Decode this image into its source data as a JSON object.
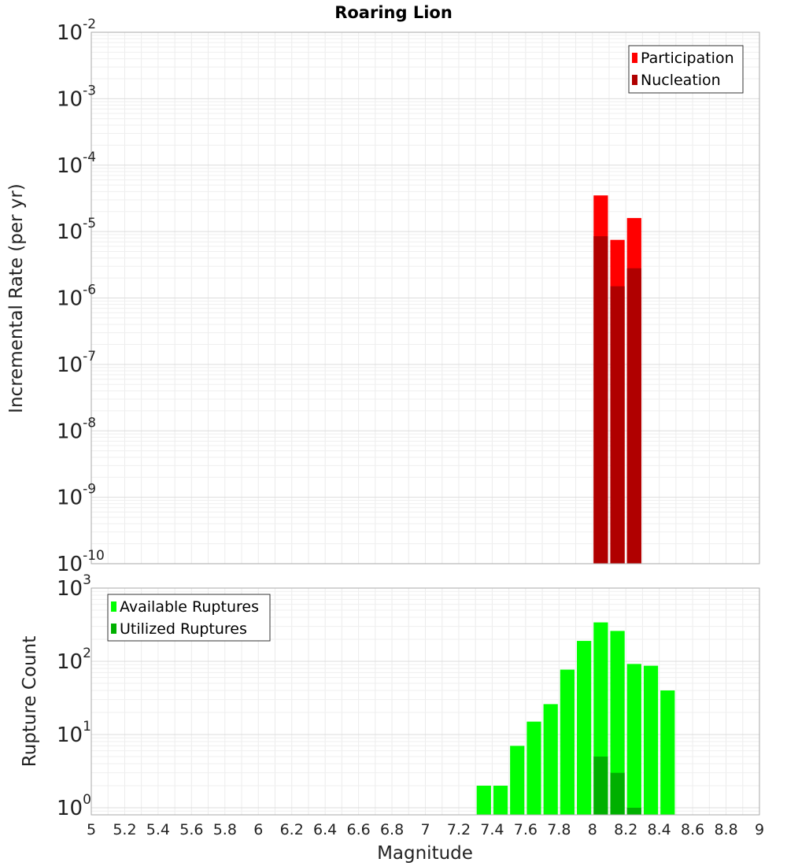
{
  "chart_data": {
    "type": "bar",
    "title": "Roaring Lion",
    "xlabel": "Magnitude",
    "xlim": [
      5,
      9
    ],
    "x_ticks": [
      "5",
      "5.2",
      "5.4",
      "5.6",
      "5.8",
      "6",
      "6.2",
      "6.4",
      "6.6",
      "6.8",
      "7",
      "7.2",
      "7.4",
      "7.6",
      "7.8",
      "8",
      "8.2",
      "8.4",
      "8.6",
      "8.8",
      "9"
    ],
    "bin_width": 0.1,
    "panels": [
      {
        "name": "rate",
        "ylabel": "Incremental Rate (per yr)",
        "yscale": "log",
        "ylim": [
          1e-10,
          0.01
        ],
        "y_ticks": [
          {
            "base": "10",
            "exp": "-10"
          },
          {
            "base": "10",
            "exp": "-9"
          },
          {
            "base": "10",
            "exp": "-8"
          },
          {
            "base": "10",
            "exp": "-7"
          },
          {
            "base": "10",
            "exp": "-6"
          },
          {
            "base": "10",
            "exp": "-5"
          },
          {
            "base": "10",
            "exp": "-4"
          },
          {
            "base": "10",
            "exp": "-3"
          },
          {
            "base": "10",
            "exp": "-2"
          }
        ],
        "legend_position": "top-right",
        "series": [
          {
            "name": "Participation",
            "color": "#ff0000",
            "x": [
              8.05,
              8.15,
              8.25
            ],
            "values": [
              3.5e-05,
              7.5e-06,
              1.6e-05
            ]
          },
          {
            "name": "Nucleation",
            "color": "#b00000",
            "x": [
              8.05,
              8.15,
              8.25
            ],
            "values": [
              8.5e-06,
              1.5e-06,
              2.8e-06
            ]
          }
        ]
      },
      {
        "name": "count",
        "ylabel": "Rupture Count",
        "yscale": "log",
        "ylim": [
          0.8,
          1000
        ],
        "y_ticks": [
          {
            "base": "10",
            "exp": "0"
          },
          {
            "base": "10",
            "exp": "1"
          },
          {
            "base": "10",
            "exp": "2"
          },
          {
            "base": "10",
            "exp": "3"
          }
        ],
        "legend_position": "top-left",
        "series": [
          {
            "name": "Available Ruptures",
            "color": "#00ff00",
            "x": [
              7.35,
              7.45,
              7.55,
              7.65,
              7.75,
              7.85,
              7.95,
              8.05,
              8.15,
              8.25,
              8.35,
              8.45
            ],
            "values": [
              2,
              2,
              7,
              15,
              26,
              77,
              190,
              340,
              260,
              92,
              87,
              40
            ]
          },
          {
            "name": "Utilized Ruptures",
            "color": "#00b000",
            "x": [
              8.05,
              8.15,
              8.25
            ],
            "values": [
              5,
              3,
              1
            ]
          }
        ]
      }
    ]
  }
}
